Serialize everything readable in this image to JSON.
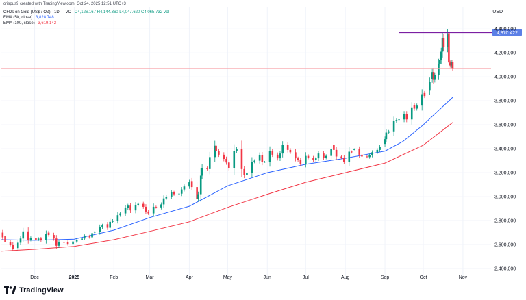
{
  "header": {
    "created_by": "crispus9 created with TradingView.com, Oct 24, 2025 12:51 UTC+3"
  },
  "legend": {
    "symbol": "CFDs on Gold (US$ / OZ) · 1D · TVC",
    "ohlc": "O4,126.167  H4,144.360  L4,047.620  C4,065.732  Vol",
    "ema50_label": "EMA (50, close)",
    "ema50_value": "3,828.748",
    "ema100_label": "EMA (100, close)",
    "ema100_value": "3,619.142"
  },
  "currency": "USD",
  "footer": {
    "brand": "TradingView"
  },
  "colors": {
    "up": "#089981",
    "down": "#f23645",
    "ema50": "#2962ff",
    "ema100": "#f23645",
    "high_line": "#7b1fa2",
    "high_label_bg": "#5b7fe6",
    "price_line": "#f7a1a8"
  },
  "chart_data": {
    "type": "candlestick",
    "title": "CFDs on Gold (US$ / OZ)",
    "y_ticks": [
      2400,
      2600,
      2800,
      3000,
      3200,
      3400,
      3600,
      3800,
      4000,
      4200,
      4400
    ],
    "y_tick_labels": [
      "2,400.000",
      "2,600.000",
      "2,800.000",
      "3,000.000",
      "3,200.000",
      "3,400.000",
      "3,600.000",
      "3,800.000",
      "4,000.000",
      "4,200.000",
      "4,400.000"
    ],
    "ylim": [
      2320,
      4470
    ],
    "x_ticks": [
      "Dec",
      "2025",
      "Feb",
      "Mar",
      "Apr",
      "May",
      "Jun",
      "Jul",
      "Aug",
      "Sep",
      "Oct",
      "Nov"
    ],
    "x_tick_dates": [
      "2024-12-01",
      "2025-01-01",
      "2025-02-01",
      "2025-03-01",
      "2025-04-01",
      "2025-05-01",
      "2025-06-01",
      "2025-07-01",
      "2025-08-01",
      "2025-09-01",
      "2025-10-01",
      "2025-11-01"
    ],
    "x_range": [
      "2024-11-05",
      "2025-11-23"
    ],
    "high_marker": {
      "value": 4370.422,
      "label": "4,370.422"
    },
    "last_price": 4065.732,
    "candles": [
      {
        "date": "2024-11-06",
        "o": 2700,
        "c": 2660
      },
      {
        "date": "2024-11-08",
        "o": 2670,
        "c": 2620
      },
      {
        "date": "2024-11-12",
        "o": 2620,
        "c": 2600
      },
      {
        "date": "2024-11-14",
        "o": 2600,
        "c": 2565
      },
      {
        "date": "2024-11-18",
        "o": 2570,
        "c": 2615
      },
      {
        "date": "2024-11-20",
        "o": 2615,
        "c": 2650
      },
      {
        "date": "2024-11-22",
        "o": 2650,
        "c": 2710
      },
      {
        "date": "2024-11-26",
        "o": 2710,
        "c": 2640
      },
      {
        "date": "2024-11-28",
        "o": 2640,
        "c": 2655
      },
      {
        "date": "2024-12-02",
        "o": 2655,
        "c": 2640
      },
      {
        "date": "2024-12-04",
        "o": 2640,
        "c": 2650
      },
      {
        "date": "2024-12-06",
        "o": 2650,
        "c": 2635
      },
      {
        "date": "2024-12-10",
        "o": 2635,
        "c": 2690
      },
      {
        "date": "2024-12-12",
        "o": 2700,
        "c": 2680
      },
      {
        "date": "2024-12-16",
        "o": 2680,
        "c": 2650
      },
      {
        "date": "2024-12-18",
        "o": 2650,
        "c": 2590
      },
      {
        "date": "2024-12-20",
        "o": 2590,
        "c": 2620
      },
      {
        "date": "2024-12-24",
        "o": 2620,
        "c": 2615
      },
      {
        "date": "2024-12-27",
        "o": 2620,
        "c": 2605
      },
      {
        "date": "2024-12-31",
        "o": 2605,
        "c": 2625
      },
      {
        "date": "2025-01-03",
        "o": 2625,
        "c": 2640
      },
      {
        "date": "2025-01-07",
        "o": 2640,
        "c": 2650
      },
      {
        "date": "2025-01-09",
        "o": 2650,
        "c": 2670
      },
      {
        "date": "2025-01-13",
        "o": 2670,
        "c": 2660
      },
      {
        "date": "2025-01-15",
        "o": 2660,
        "c": 2695
      },
      {
        "date": "2025-01-17",
        "o": 2700,
        "c": 2705
      },
      {
        "date": "2025-01-21",
        "o": 2705,
        "c": 2745
      },
      {
        "date": "2025-01-23",
        "o": 2745,
        "c": 2760
      },
      {
        "date": "2025-01-27",
        "o": 2770,
        "c": 2740
      },
      {
        "date": "2025-01-29",
        "o": 2740,
        "c": 2790
      },
      {
        "date": "2025-01-31",
        "o": 2790,
        "c": 2800
      },
      {
        "date": "2025-02-04",
        "o": 2800,
        "c": 2845
      },
      {
        "date": "2025-02-06",
        "o": 2845,
        "c": 2860
      },
      {
        "date": "2025-02-10",
        "o": 2860,
        "c": 2905
      },
      {
        "date": "2025-02-12",
        "o": 2905,
        "c": 2925
      },
      {
        "date": "2025-02-14",
        "o": 2925,
        "c": 2885
      },
      {
        "date": "2025-02-18",
        "o": 2885,
        "c": 2930
      },
      {
        "date": "2025-02-20",
        "o": 2930,
        "c": 2940
      },
      {
        "date": "2025-02-24",
        "o": 2940,
        "c": 2915
      },
      {
        "date": "2025-02-26",
        "o": 2915,
        "c": 2875
      },
      {
        "date": "2025-02-28",
        "o": 2875,
        "c": 2860
      },
      {
        "date": "2025-03-04",
        "o": 2860,
        "c": 2915
      },
      {
        "date": "2025-03-06",
        "o": 2915,
        "c": 2910
      },
      {
        "date": "2025-03-10",
        "o": 2910,
        "c": 2935
      },
      {
        "date": "2025-03-12",
        "o": 2935,
        "c": 2985
      },
      {
        "date": "2025-03-14",
        "o": 2985,
        "c": 3000
      },
      {
        "date": "2025-03-18",
        "o": 3000,
        "c": 3035
      },
      {
        "date": "2025-03-20",
        "o": 3035,
        "c": 3020
      },
      {
        "date": "2025-03-24",
        "o": 3020,
        "c": 3025
      },
      {
        "date": "2025-03-26",
        "o": 3025,
        "c": 3060
      },
      {
        "date": "2025-03-28",
        "o": 3060,
        "c": 3085
      },
      {
        "date": "2025-04-01",
        "o": 3085,
        "c": 3120
      },
      {
        "date": "2025-04-03",
        "o": 3130,
        "c": 3080
      },
      {
        "date": "2025-04-07",
        "o": 3080,
        "c": 2980
      },
      {
        "date": "2025-04-08",
        "o": 2980,
        "c": 3020
      },
      {
        "date": "2025-04-10",
        "o": 3020,
        "c": 3175
      },
      {
        "date": "2025-04-11",
        "o": 3175,
        "c": 3240
      },
      {
        "date": "2025-04-15",
        "o": 3240,
        "c": 3230
      },
      {
        "date": "2025-04-17",
        "o": 3230,
        "c": 3330
      },
      {
        "date": "2025-04-21",
        "o": 3330,
        "c": 3425
      },
      {
        "date": "2025-04-22",
        "o": 3425,
        "c": 3380
      },
      {
        "date": "2025-04-24",
        "o": 3380,
        "c": 3350
      },
      {
        "date": "2025-04-28",
        "o": 3350,
        "c": 3315
      },
      {
        "date": "2025-04-30",
        "o": 3315,
        "c": 3285
      },
      {
        "date": "2025-05-02",
        "o": 3285,
        "c": 3240
      },
      {
        "date": "2025-05-06",
        "o": 3240,
        "c": 3380
      },
      {
        "date": "2025-05-08",
        "o": 3380,
        "c": 3400
      },
      {
        "date": "2025-05-12",
        "o": 3400,
        "c": 3230
      },
      {
        "date": "2025-05-14",
        "o": 3230,
        "c": 3180
      },
      {
        "date": "2025-05-16",
        "o": 3180,
        "c": 3200
      },
      {
        "date": "2025-05-20",
        "o": 3200,
        "c": 3290
      },
      {
        "date": "2025-05-22",
        "o": 3290,
        "c": 3300
      },
      {
        "date": "2025-05-26",
        "o": 3300,
        "c": 3345
      },
      {
        "date": "2025-05-28",
        "o": 3345,
        "c": 3290
      },
      {
        "date": "2025-05-30",
        "o": 3290,
        "c": 3290
      },
      {
        "date": "2025-06-03",
        "o": 3290,
        "c": 3380
      },
      {
        "date": "2025-06-05",
        "o": 3380,
        "c": 3350
      },
      {
        "date": "2025-06-09",
        "o": 3350,
        "c": 3320
      },
      {
        "date": "2025-06-11",
        "o": 3320,
        "c": 3360
      },
      {
        "date": "2025-06-13",
        "o": 3360,
        "c": 3430
      },
      {
        "date": "2025-06-17",
        "o": 3430,
        "c": 3390
      },
      {
        "date": "2025-06-19",
        "o": 3390,
        "c": 3370
      },
      {
        "date": "2025-06-23",
        "o": 3370,
        "c": 3320
      },
      {
        "date": "2025-06-25",
        "o": 3320,
        "c": 3305
      },
      {
        "date": "2025-06-27",
        "o": 3305,
        "c": 3275
      },
      {
        "date": "2025-07-01",
        "o": 3275,
        "c": 3340
      },
      {
        "date": "2025-07-03",
        "o": 3340,
        "c": 3325
      },
      {
        "date": "2025-07-07",
        "o": 3325,
        "c": 3305
      },
      {
        "date": "2025-07-09",
        "o": 3305,
        "c": 3320
      },
      {
        "date": "2025-07-11",
        "o": 3320,
        "c": 3360
      },
      {
        "date": "2025-07-15",
        "o": 3360,
        "c": 3325
      },
      {
        "date": "2025-07-17",
        "o": 3325,
        "c": 3340
      },
      {
        "date": "2025-07-21",
        "o": 3340,
        "c": 3395
      },
      {
        "date": "2025-07-23",
        "o": 3430,
        "c": 3390
      },
      {
        "date": "2025-07-25",
        "o": 3390,
        "c": 3335
      },
      {
        "date": "2025-07-29",
        "o": 3335,
        "c": 3325
      },
      {
        "date": "2025-07-31",
        "o": 3325,
        "c": 3290
      },
      {
        "date": "2025-08-04",
        "o": 3290,
        "c": 3375
      },
      {
        "date": "2025-08-06",
        "o": 3375,
        "c": 3370
      },
      {
        "date": "2025-08-08",
        "o": 3395,
        "c": 3395
      },
      {
        "date": "2025-08-12",
        "o": 3395,
        "c": 3350
      },
      {
        "date": "2025-08-14",
        "o": 3350,
        "c": 3335
      },
      {
        "date": "2025-08-18",
        "o": 3335,
        "c": 3330
      },
      {
        "date": "2025-08-20",
        "o": 3330,
        "c": 3345
      },
      {
        "date": "2025-08-22",
        "o": 3345,
        "c": 3370
      },
      {
        "date": "2025-08-26",
        "o": 3370,
        "c": 3390
      },
      {
        "date": "2025-08-28",
        "o": 3390,
        "c": 3415
      },
      {
        "date": "2025-09-01",
        "o": 3440,
        "c": 3480
      },
      {
        "date": "2025-09-02",
        "o": 3480,
        "c": 3535
      },
      {
        "date": "2025-09-04",
        "o": 3535,
        "c": 3545
      },
      {
        "date": "2025-09-08",
        "o": 3545,
        "c": 3630
      },
      {
        "date": "2025-09-10",
        "o": 3630,
        "c": 3640
      },
      {
        "date": "2025-09-12",
        "o": 3640,
        "c": 3645
      },
      {
        "date": "2025-09-16",
        "o": 3645,
        "c": 3690
      },
      {
        "date": "2025-09-18",
        "o": 3690,
        "c": 3645
      },
      {
        "date": "2025-09-22",
        "o": 3645,
        "c": 3745
      },
      {
        "date": "2025-09-24",
        "o": 3765,
        "c": 3735
      },
      {
        "date": "2025-09-26",
        "o": 3735,
        "c": 3760
      },
      {
        "date": "2025-09-30",
        "o": 3760,
        "c": 3855
      },
      {
        "date": "2025-10-02",
        "o": 3865,
        "c": 3840
      },
      {
        "date": "2025-10-06",
        "o": 3885,
        "c": 3960
      },
      {
        "date": "2025-10-08",
        "o": 3980,
        "c": 4040
      },
      {
        "date": "2025-10-09",
        "o": 4040,
        "c": 3975
      },
      {
        "date": "2025-10-10",
        "o": 3975,
        "c": 4015
      },
      {
        "date": "2025-10-13",
        "o": 4015,
        "c": 4110
      },
      {
        "date": "2025-10-14",
        "o": 4110,
        "c": 4140
      },
      {
        "date": "2025-10-15",
        "o": 4140,
        "c": 4210
      },
      {
        "date": "2025-10-16",
        "o": 4210,
        "c": 4325
      },
      {
        "date": "2025-10-17",
        "o": 4325,
        "c": 4250
      },
      {
        "date": "2025-10-20",
        "o": 4250,
        "c": 4355
      },
      {
        "date": "2025-10-21",
        "o": 4365,
        "c": 4120
      },
      {
        "date": "2025-10-22",
        "o": 4120,
        "c": 4095
      },
      {
        "date": "2025-10-23",
        "o": 4095,
        "c": 4125
      },
      {
        "date": "2025-10-24",
        "o": 4126.167,
        "c": 4065.732,
        "h": 4144.36,
        "l": 4047.62
      }
    ],
    "series": [
      {
        "name": "EMA (50, close)",
        "points": [
          [
            "2024-11-05",
            2640
          ],
          [
            "2024-12-01",
            2635
          ],
          [
            "2025-01-01",
            2645
          ],
          [
            "2025-02-01",
            2720
          ],
          [
            "2025-03-01",
            2825
          ],
          [
            "2025-04-01",
            2920
          ],
          [
            "2025-05-01",
            3090
          ],
          [
            "2025-06-01",
            3200
          ],
          [
            "2025-07-01",
            3270
          ],
          [
            "2025-08-01",
            3320
          ],
          [
            "2025-09-01",
            3380
          ],
          [
            "2025-09-15",
            3460
          ],
          [
            "2025-10-01",
            3600
          ],
          [
            "2025-10-15",
            3740
          ],
          [
            "2025-10-24",
            3828.748
          ]
        ]
      },
      {
        "name": "EMA (100, close)",
        "points": [
          [
            "2024-11-05",
            2545
          ],
          [
            "2024-12-01",
            2560
          ],
          [
            "2025-01-01",
            2585
          ],
          [
            "2025-02-01",
            2640
          ],
          [
            "2025-03-01",
            2710
          ],
          [
            "2025-04-01",
            2790
          ],
          [
            "2025-05-01",
            2910
          ],
          [
            "2025-06-01",
            3020
          ],
          [
            "2025-07-01",
            3120
          ],
          [
            "2025-08-01",
            3200
          ],
          [
            "2025-09-01",
            3280
          ],
          [
            "2025-10-01",
            3430
          ],
          [
            "2025-10-24",
            3619.142
          ]
        ]
      }
    ]
  }
}
